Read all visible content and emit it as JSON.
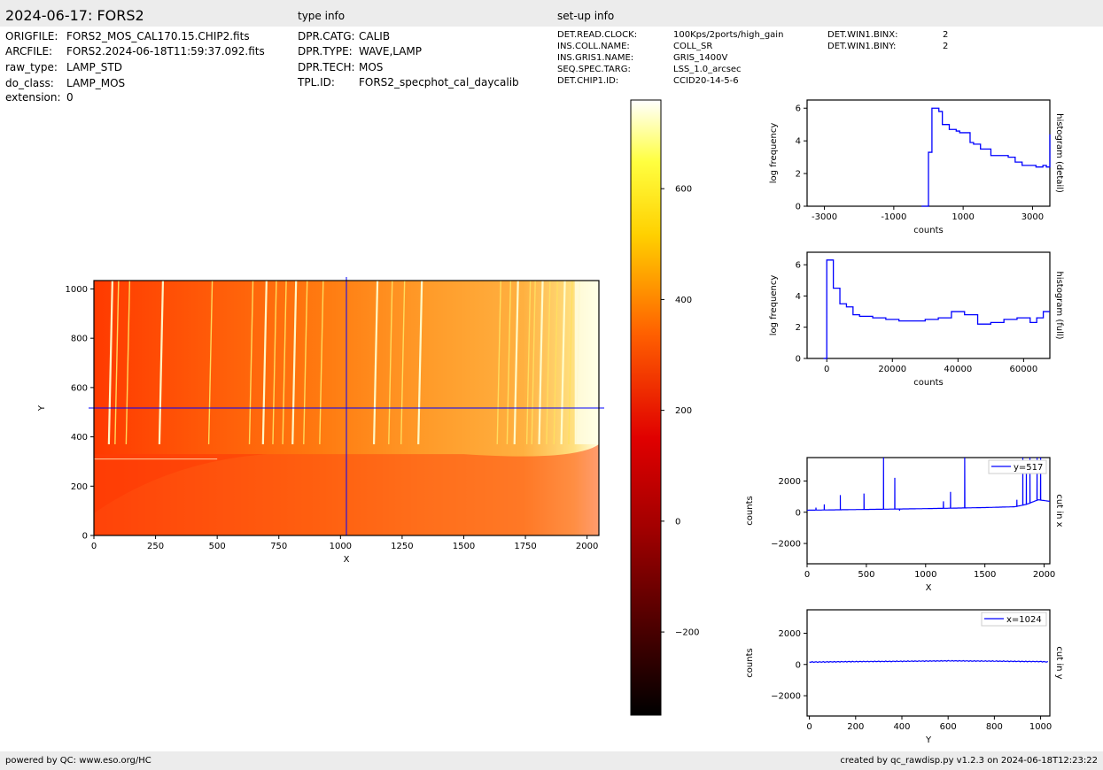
{
  "header": {
    "title": "2024-06-17: FORS2",
    "type_info_label": "type info",
    "setup_info_label": "set-up info"
  },
  "file_info": [
    {
      "key": "ORIGFILE:",
      "value": "FORS2_MOS_CAL170.15.CHIP2.fits"
    },
    {
      "key": "ARCFILE:",
      "value": "FORS2.2024-06-18T11:59:37.092.fits"
    },
    {
      "key": "raw_type:",
      "value": "LAMP_STD"
    },
    {
      "key": "do_class:",
      "value": "LAMP_MOS"
    },
    {
      "key": "extension:",
      "value": "0"
    }
  ],
  "type_info": [
    {
      "key": "DPR.CATG:",
      "value": "CALIB"
    },
    {
      "key": "DPR.TYPE:",
      "value": "WAVE,LAMP"
    },
    {
      "key": "DPR.TECH:",
      "value": "MOS"
    },
    {
      "key": "TPL.ID:",
      "value": "FORS2_specphot_cal_daycalib"
    }
  ],
  "setup_info": [
    {
      "key": "DET.READ.CLOCK:",
      "value": "100Kps/2ports/high_gain"
    },
    {
      "key": "INS.COLL.NAME:",
      "value": "COLL_SR"
    },
    {
      "key": "INS.GRIS1.NAME:",
      "value": "GRIS_1400V"
    },
    {
      "key": "SEQ.SPEC.TARG:",
      "value": "LSS_1.0_arcsec"
    },
    {
      "key": "DET.CHIP1.ID:",
      "value": "CCID20-14-5-6"
    }
  ],
  "setup_info2": [
    {
      "key": "DET.WIN1.BINX:",
      "value": "2"
    },
    {
      "key": "DET.WIN1.BINY:",
      "value": "2"
    }
  ],
  "footer": {
    "left": "powered by QC: www.eso.org/HC",
    "right": "created by qc_rawdisp.py v1.2.3 on 2024-06-18T12:23:22"
  },
  "colors": {
    "line": "#0000ff",
    "image_low": "#ff3300",
    "image_high": "#ffffe0"
  },
  "chart_data": [
    {
      "type": "heatmap",
      "xlabel": "X",
      "ylabel": "Y",
      "xlim": [
        0,
        2048
      ],
      "ylim": [
        0,
        1034
      ],
      "xticks": [
        "0",
        "250",
        "500",
        "750",
        "1000",
        "1250",
        "1500",
        "1750",
        "2000"
      ],
      "yticks": [
        "0",
        "200",
        "400",
        "600",
        "800",
        "1000"
      ],
      "crosshair": {
        "x": 1024,
        "y": 517
      },
      "colormap": "hot",
      "colorbar": {
        "lim": [
          -350,
          760
        ],
        "ticks": [
          "−200",
          "0",
          "200",
          "400",
          "600"
        ]
      },
      "arc_lines_x": [
        75,
        100,
        145,
        280,
        480,
        645,
        700,
        740,
        780,
        820,
        865,
        930,
        1150,
        1210,
        1260,
        1330,
        1650,
        1690,
        1720,
        1770,
        1790,
        1820,
        1850,
        1880,
        1910,
        1940,
        1970
      ]
    },
    {
      "type": "line",
      "name": "histogram (detail)",
      "xlabel": "counts",
      "ylabel": "log frequency",
      "xlim": [
        -3500,
        3500
      ],
      "ylim": [
        0,
        6.5
      ],
      "xticks": [
        "-3000",
        "-1000",
        "1000",
        "3000"
      ],
      "yticks": [
        "0",
        "2",
        "4",
        "6"
      ],
      "step_x": [
        -200,
        0,
        100,
        300,
        400,
        600,
        800,
        900,
        1200,
        1300,
        1500,
        1800,
        2000,
        2200,
        2300,
        2500,
        2700,
        2900,
        3100,
        3300,
        3400,
        3500
      ],
      "step_y": [
        0,
        3.3,
        6.0,
        5.8,
        5.0,
        4.7,
        4.6,
        4.5,
        3.9,
        3.8,
        3.5,
        3.1,
        3.1,
        3.1,
        3.0,
        2.7,
        2.5,
        2.5,
        2.4,
        2.5,
        2.4,
        4.4
      ]
    },
    {
      "type": "line",
      "name": "histogram (full)",
      "xlabel": "counts",
      "ylabel": "log frequency",
      "xlim": [
        -6000,
        68000
      ],
      "ylim": [
        0,
        6.8
      ],
      "xticks": [
        "0",
        "20000",
        "40000",
        "60000"
      ],
      "yticks": [
        "0",
        "2",
        "4",
        "6"
      ],
      "step_x": [
        -1000,
        0,
        2000,
        4000,
        6000,
        8000,
        10000,
        14000,
        18000,
        22000,
        26000,
        30000,
        34000,
        38000,
        42000,
        46000,
        50000,
        54000,
        58000,
        62000,
        64000,
        66000
      ],
      "step_y": [
        0,
        6.3,
        4.5,
        3.5,
        3.3,
        2.8,
        2.7,
        2.6,
        2.5,
        2.4,
        2.4,
        2.5,
        2.6,
        3.0,
        2.8,
        2.2,
        2.3,
        2.5,
        2.6,
        2.3,
        2.6,
        3.0
      ]
    },
    {
      "type": "line",
      "name": "cut in x",
      "legend": "y=517",
      "xlabel": "X",
      "ylabel": "counts",
      "xlim": [
        0,
        2048
      ],
      "ylim": [
        -3300,
        3500
      ],
      "xticks": [
        "0",
        "500",
        "1000",
        "1500",
        "2000"
      ],
      "yticks": [
        "−2000",
        "0",
        "2000"
      ],
      "baseline": [
        [
          0,
          130
        ],
        [
          500,
          180
        ],
        [
          1000,
          230
        ],
        [
          1500,
          300
        ],
        [
          1750,
          350
        ],
        [
          1850,
          500
        ],
        [
          1950,
          800
        ],
        [
          2048,
          700
        ]
      ],
      "peaks": [
        [
          75,
          300
        ],
        [
          145,
          500
        ],
        [
          280,
          1100
        ],
        [
          480,
          1200
        ],
        [
          645,
          3500
        ],
        [
          740,
          2200
        ],
        [
          780,
          100
        ],
        [
          1150,
          700
        ],
        [
          1210,
          1300
        ],
        [
          1330,
          3500
        ],
        [
          1770,
          800
        ],
        [
          1820,
          3500
        ],
        [
          1850,
          3000
        ],
        [
          1880,
          3500
        ],
        [
          1940,
          3500
        ],
        [
          1970,
          3500
        ]
      ]
    },
    {
      "type": "line",
      "name": "cut in y",
      "legend": "x=1024",
      "xlabel": "Y",
      "ylabel": "counts",
      "xlim": [
        -10,
        1040
      ],
      "ylim": [
        -3300,
        3500
      ],
      "xticks": [
        "0",
        "200",
        "400",
        "600",
        "800",
        "1000"
      ],
      "yticks": [
        "−2000",
        "0",
        "2000"
      ],
      "values": [
        [
          0,
          150
        ],
        [
          200,
          180
        ],
        [
          400,
          200
        ],
        [
          600,
          230
        ],
        [
          800,
          210
        ],
        [
          1000,
          180
        ],
        [
          1034,
          160
        ]
      ]
    }
  ]
}
